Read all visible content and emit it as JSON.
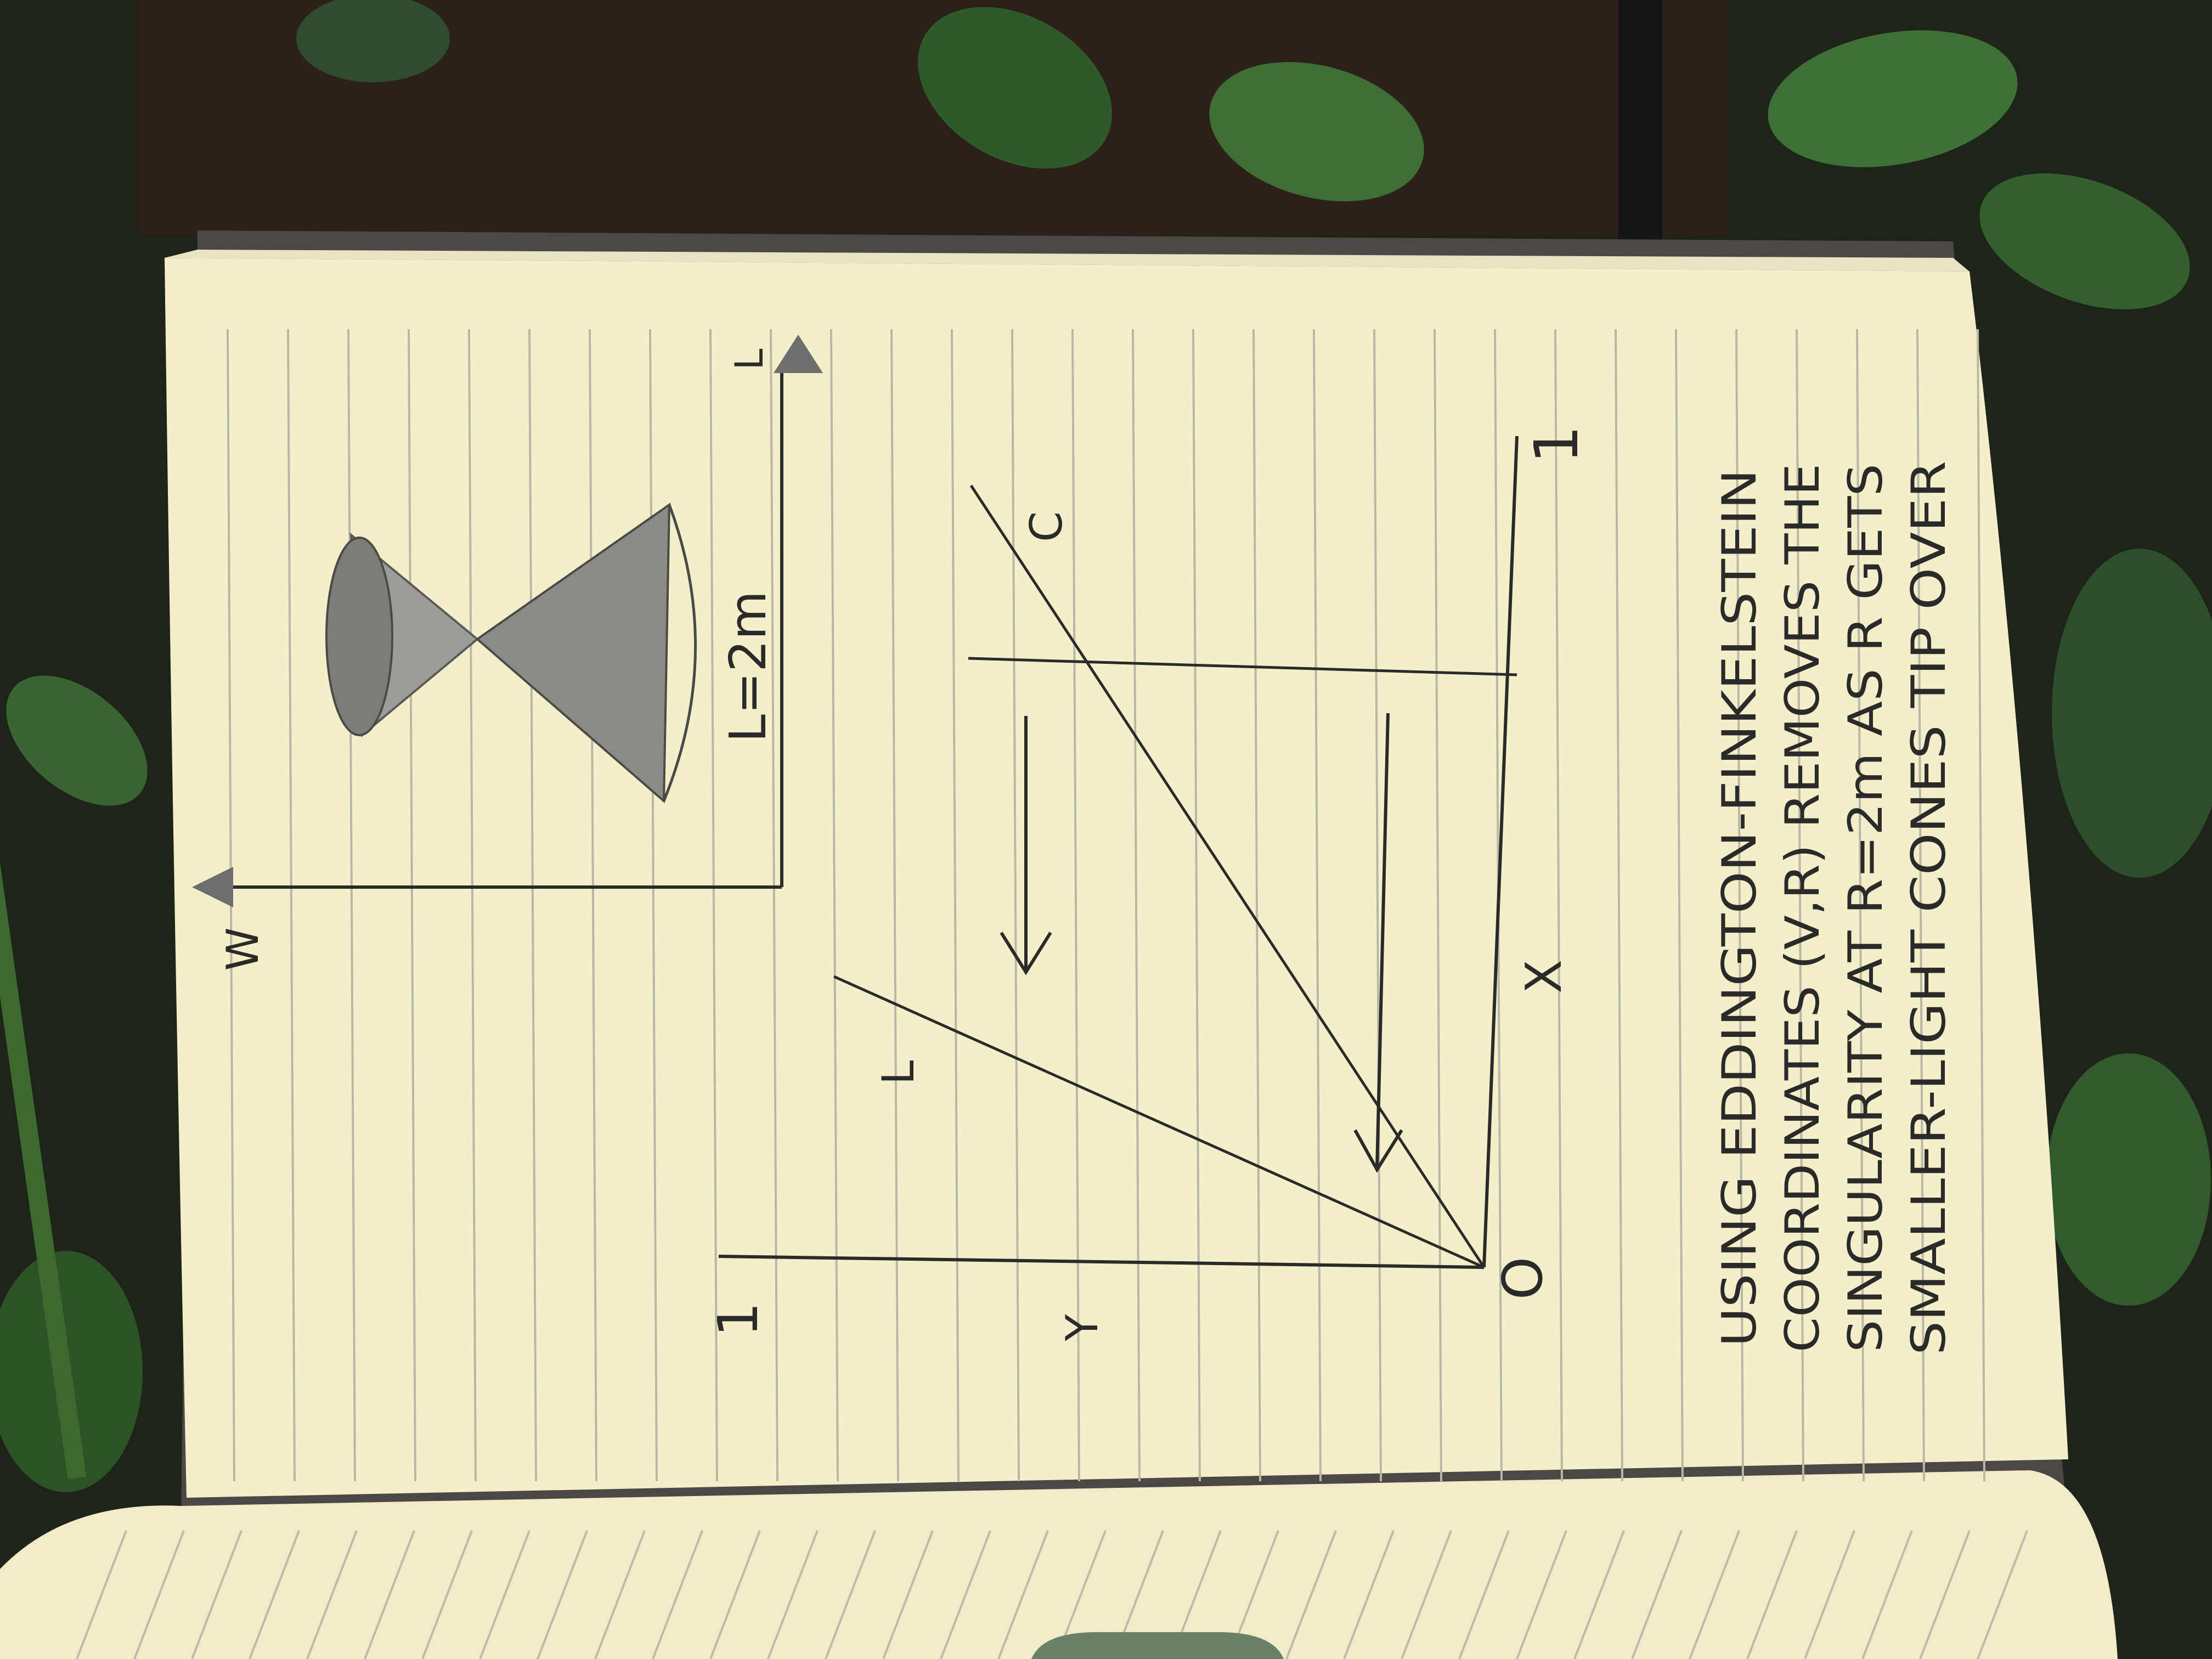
{
  "colors": {
    "paper": "#f3efc9",
    "rule_line": "#b9b7a6",
    "ink": "#2a2a2a",
    "graphite": "#7c7c78",
    "soil": "#2b211a",
    "leaf": "#2e5a2b",
    "cover": "#4a4846"
  },
  "sketch_top": {
    "axis_w_label": "W",
    "axis_l_label": "L",
    "horizon_label": "L=2m"
  },
  "sketch_bottom": {
    "y_axis_label": "Y",
    "x_axis_label": "X",
    "origin_label": "O",
    "y_tick_label": "1",
    "x_tick_label": "1",
    "line_label_l": "L",
    "line_label_c": "C"
  },
  "note": {
    "line1": "USING EDDINGTON-FINKELSTEIN",
    "line2": "COORDINATES (V,R) REMOVES THE",
    "line3": "SINGULARITY AT R=2m AS R GETS",
    "line4": "SMALLER-LIGHT CONES TIP OVER"
  }
}
